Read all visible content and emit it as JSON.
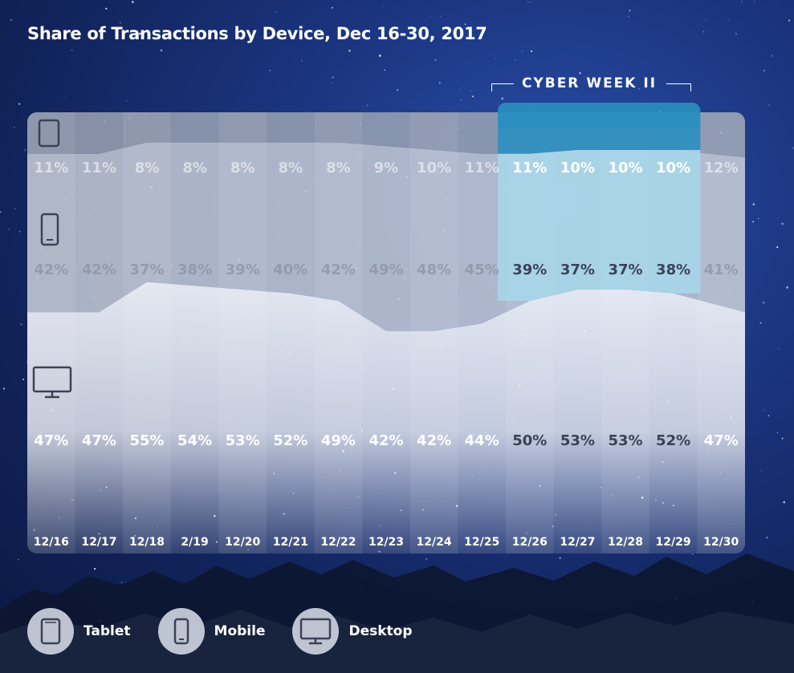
{
  "title": "Share of Transactions by Device, Dec 16-30, 2017",
  "highlight": {
    "label": "CYBER WEEK II",
    "dates": [
      "12/26",
      "12/27",
      "12/28",
      "12/29"
    ]
  },
  "legend": [
    {
      "label": "Tablet",
      "icon": "tablet-icon"
    },
    {
      "label": "Mobile",
      "icon": "mobile-icon"
    },
    {
      "label": "Desktop",
      "icon": "desktop-icon"
    }
  ],
  "colors": {
    "tablet_band": "#9aa3b3",
    "mobile_band": "#c6cbd6",
    "desktop_band": "#edf0f6",
    "highlight_tablet": "#2b8fc0",
    "highlight_mobile": "#a7d6ea",
    "dark_label": "#3a4256",
    "light_label": "#ffffff"
  },
  "chart_data": {
    "type": "area",
    "stacked": true,
    "percent": true,
    "categories": [
      "12/16",
      "12/17",
      "12/18",
      "2/19",
      "12/20",
      "12/21",
      "12/22",
      "12/23",
      "12/24",
      "12/25",
      "12/26",
      "12/27",
      "12/28",
      "12/29",
      "12/30"
    ],
    "series": [
      {
        "name": "Tablet",
        "values": [
          11,
          11,
          8,
          8,
          8,
          8,
          8,
          9,
          10,
          11,
          11,
          10,
          10,
          10,
          12
        ]
      },
      {
        "name": "Mobile",
        "values": [
          42,
          42,
          37,
          38,
          39,
          40,
          42,
          49,
          48,
          45,
          39,
          37,
          37,
          38,
          41
        ]
      },
      {
        "name": "Desktop",
        "values": [
          47,
          47,
          55,
          54,
          53,
          52,
          49,
          42,
          42,
          44,
          50,
          53,
          53,
          52,
          47
        ]
      }
    ],
    "labels": {
      "Tablet": [
        "11%",
        "11%",
        "8%",
        "8%",
        "8%",
        "8%",
        "8%",
        "9%",
        "10%",
        "11%",
        "11%",
        "10%",
        "10%",
        "10%",
        "12%"
      ],
      "Mobile": [
        "42%",
        "42%",
        "37%",
        "38%",
        "39%",
        "40%",
        "42%",
        "49%",
        "48%",
        "45%",
        "39%",
        "37%",
        "37%",
        "38%",
        "41%"
      ],
      "Desktop": [
        "47%",
        "47%",
        "55%",
        "54%",
        "53%",
        "52%",
        "49%",
        "42%",
        "42%",
        "44%",
        "50%",
        "53%",
        "53%",
        "52%",
        "47%"
      ]
    },
    "ylim": [
      0,
      100
    ]
  }
}
